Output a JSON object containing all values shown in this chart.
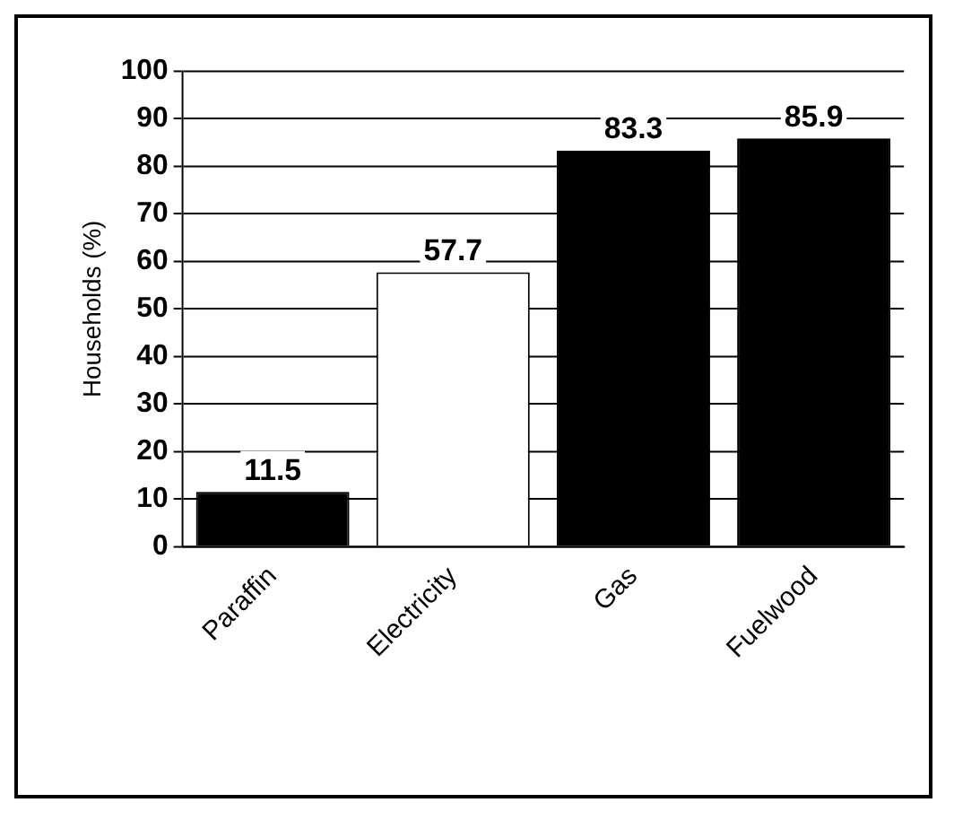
{
  "chart_data": {
    "type": "bar",
    "ylabel": "Households (%)",
    "categories": [
      "Paraffin",
      "Electricity",
      "Gas",
      "Fuelwood"
    ],
    "values": [
      11.5,
      57.7,
      83.3,
      85.9
    ],
    "colors": [
      "#000000",
      "#ffffff",
      "#000000",
      "#000000"
    ],
    "ylim": [
      0,
      100
    ],
    "yticks": [
      0,
      10,
      20,
      30,
      40,
      50,
      60,
      70,
      80,
      90,
      100
    ],
    "grid": "y",
    "data_labels": true
  }
}
